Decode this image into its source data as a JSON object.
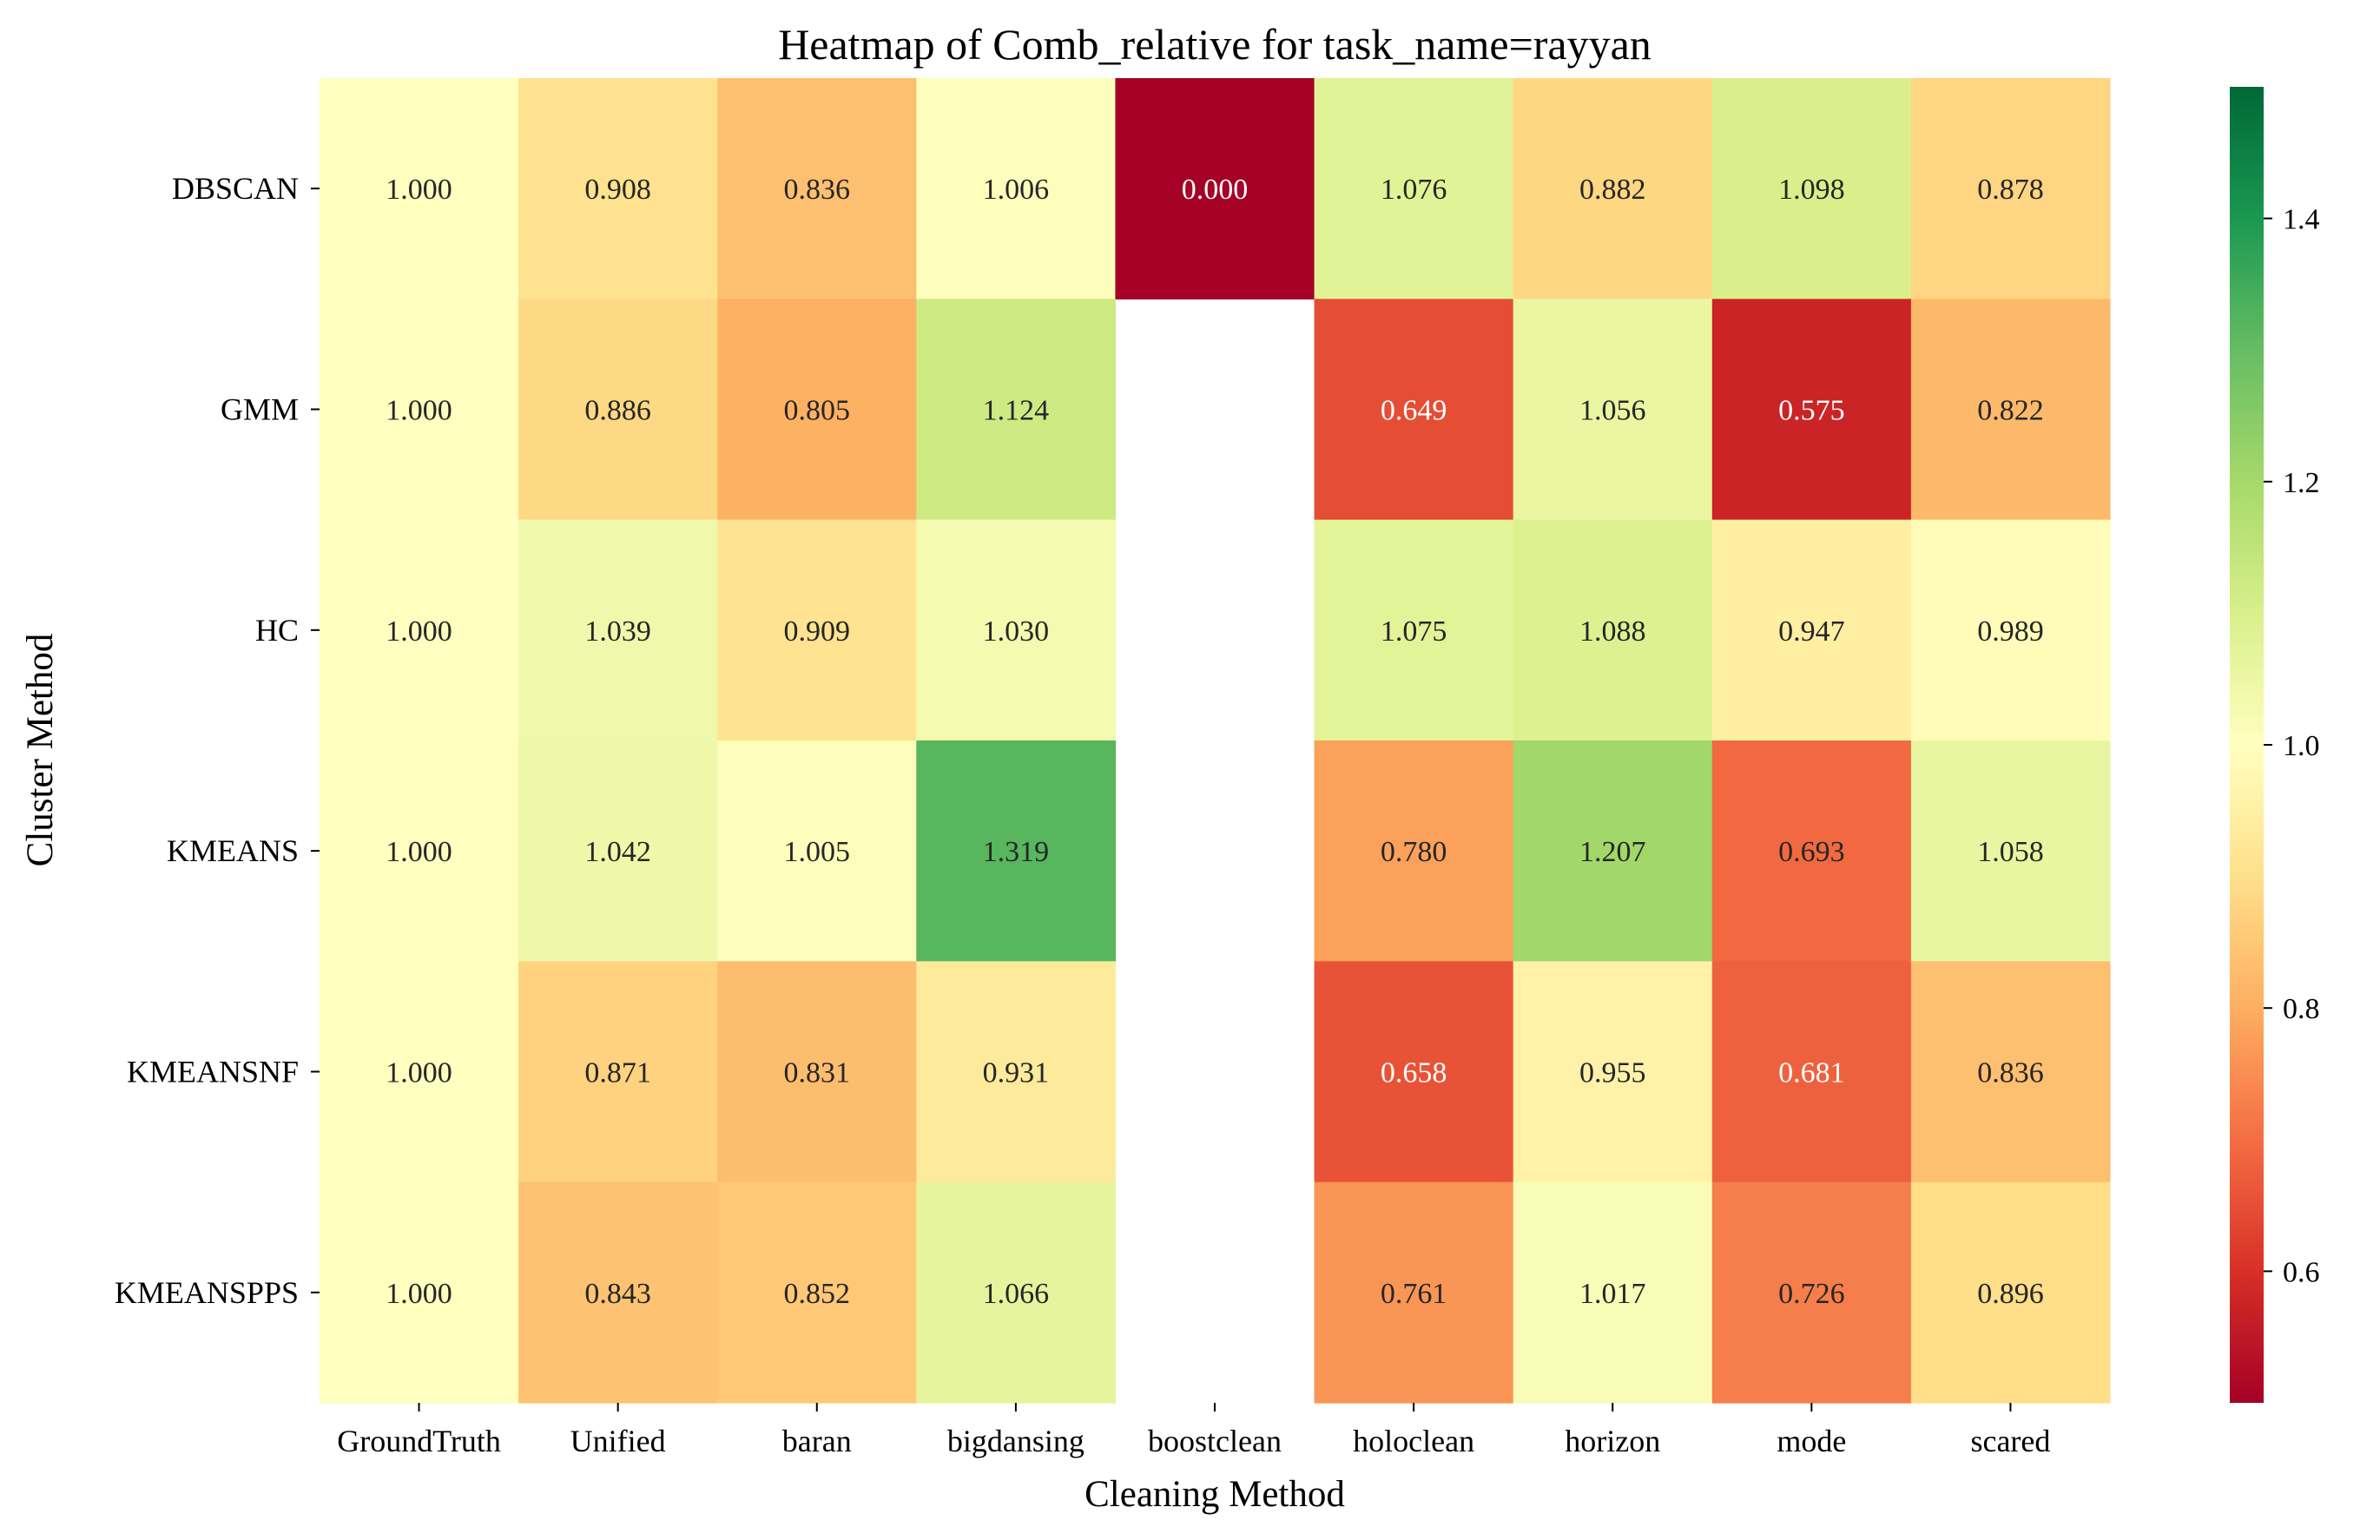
{
  "chart_data": {
    "type": "heatmap",
    "title": "Heatmap of Comb_relative for task_name=rayyan",
    "xlabel": "Cleaning Method",
    "ylabel": "Cluster Method",
    "columns": [
      "GroundTruth",
      "Unified",
      "baran",
      "bigdansing",
      "boostclean",
      "holoclean",
      "horizon",
      "mode",
      "scared"
    ],
    "rows": [
      "DBSCAN",
      "GMM",
      "HC",
      "KMEANS",
      "KMEANSNF",
      "KMEANSPPS"
    ],
    "values": [
      [
        1.0,
        0.908,
        0.836,
        1.006,
        0.0,
        1.076,
        0.882,
        1.098,
        0.878
      ],
      [
        1.0,
        0.886,
        0.805,
        1.124,
        null,
        0.649,
        1.056,
        0.575,
        0.822
      ],
      [
        1.0,
        1.039,
        0.909,
        1.03,
        null,
        1.075,
        1.088,
        0.947,
        0.989
      ],
      [
        1.0,
        1.042,
        1.005,
        1.319,
        null,
        0.78,
        1.207,
        0.693,
        1.058
      ],
      [
        1.0,
        0.871,
        0.831,
        0.931,
        null,
        0.658,
        0.955,
        0.681,
        0.836
      ],
      [
        1.0,
        0.843,
        0.852,
        1.066,
        null,
        0.761,
        1.017,
        0.726,
        0.896
      ]
    ],
    "value_labels": [
      [
        "1.000",
        "0.908",
        "0.836",
        "1.006",
        "0.000",
        "1.076",
        "0.882",
        "1.098",
        "0.878"
      ],
      [
        "1.000",
        "0.886",
        "0.805",
        "1.124",
        "",
        "0.649",
        "1.056",
        "0.575",
        "0.822"
      ],
      [
        "1.000",
        "1.039",
        "0.909",
        "1.030",
        "",
        "1.075",
        "1.088",
        "0.947",
        "0.989"
      ],
      [
        "1.000",
        "1.042",
        "1.005",
        "1.319",
        "",
        "0.780",
        "1.207",
        "0.693",
        "1.058"
      ],
      [
        "1.000",
        "0.871",
        "0.831",
        "0.931",
        "",
        "0.658",
        "0.955",
        "0.681",
        "0.836"
      ],
      [
        "1.000",
        "0.843",
        "0.852",
        "1.066",
        "",
        "0.761",
        "1.017",
        "0.726",
        "0.896"
      ]
    ],
    "color_range": [
      0.5,
      1.5
    ],
    "colormap": "RdYlGn",
    "colorbar_ticks": [
      0.6,
      0.8,
      1.0,
      1.2,
      1.4
    ],
    "colorbar_tick_labels": [
      "0.6",
      "0.8",
      "1.0",
      "1.2",
      "1.4"
    ],
    "legend": "colorbar-right",
    "grid": false
  }
}
